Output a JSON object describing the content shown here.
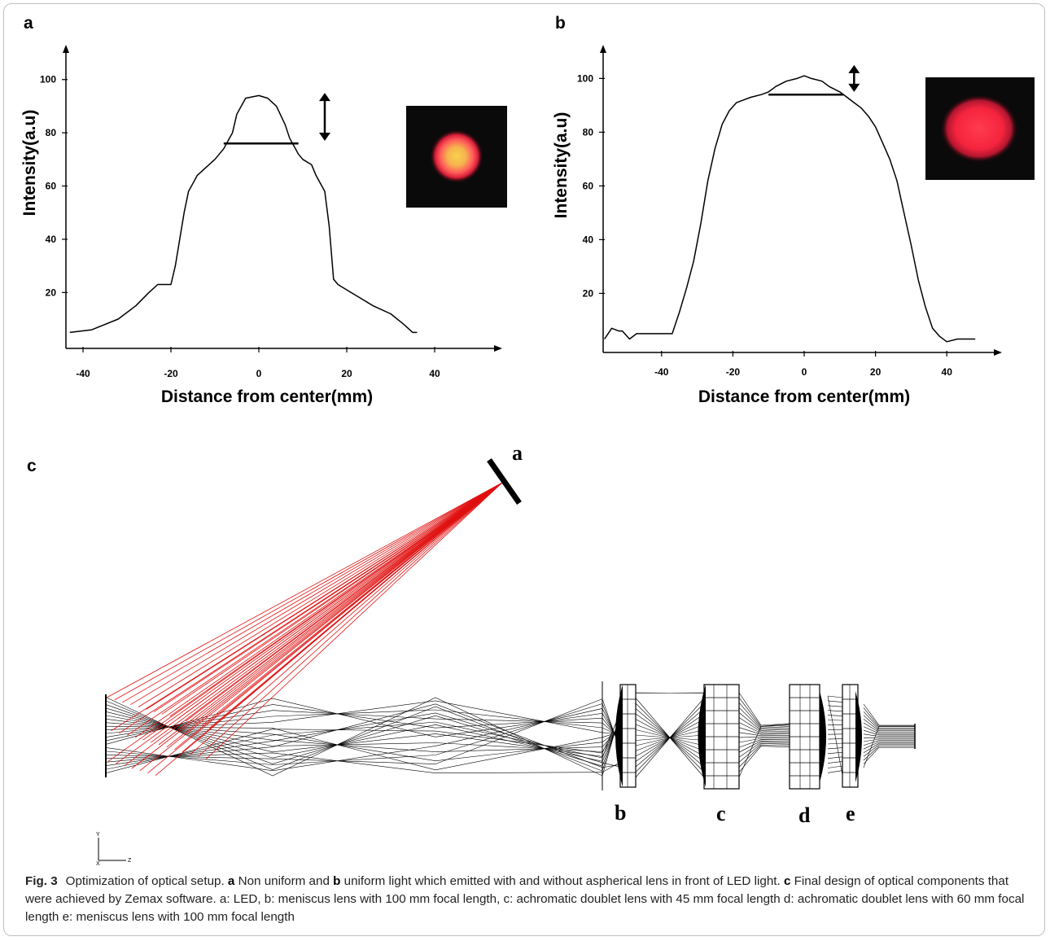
{
  "figure": {
    "panel_labels": {
      "a": "a",
      "b": "b",
      "c": "c"
    },
    "component_labels": [
      "a",
      "b",
      "c",
      "d",
      "e"
    ],
    "axis_glyphs": {
      "y": "Y",
      "z": "Z",
      "x": "X"
    },
    "caption": {
      "fig_label": "Fig. 3",
      "p1": "Optimization of optical setup.",
      "b1": "a",
      "p2": "Non uniform and",
      "b2": "b",
      "p3": "uniform light which emitted with and without aspherical lens in front of LED light.",
      "b3": "c",
      "p4": "Final design of optical components that were achieved by Zemax software. a: LED, b: meniscus lens with 100 mm focal length, c: achromatic doublet lens with 45 mm focal length d: achromatic doublet lens with 60 mm focal length e: meniscus lens with 100 mm focal length"
    }
  },
  "chart_data": [
    {
      "type": "line",
      "panel": "a",
      "xlabel": "Distance from center(mm)",
      "ylabel": "Intensity(a.u)",
      "xlim": [
        -44,
        56
      ],
      "ylim": [
        -1,
        111
      ],
      "x_ticks": [
        -40,
        -20,
        0,
        20,
        40
      ],
      "y_ticks": [
        20,
        40,
        60,
        80,
        100
      ],
      "series": [
        {
          "x": [
            -43,
            -38,
            -32,
            -28,
            -25,
            -23,
            -20,
            -19,
            -17,
            -16,
            -15,
            -14,
            -12,
            -10,
            -8,
            -6,
            -5,
            -3,
            0,
            2,
            4,
            6,
            7,
            8,
            9,
            10,
            12,
            13,
            15,
            16,
            17,
            18,
            20,
            23,
            26,
            30,
            33,
            35,
            36
          ],
          "y": [
            5,
            6,
            10,
            15,
            20,
            23,
            23,
            30,
            50,
            58,
            61,
            64,
            67,
            70,
            74,
            80,
            87,
            93,
            94,
            93,
            90,
            83,
            78,
            75,
            72,
            70,
            68,
            64,
            58,
            45,
            25,
            23,
            21,
            18,
            15,
            12,
            8,
            5,
            5
          ]
        }
      ],
      "annotations": [
        {
          "type": "horizontal-bar",
          "x": [
            -8,
            9
          ],
          "y": 76
        },
        {
          "type": "double-arrow",
          "x": 15,
          "y": [
            77,
            95
          ]
        }
      ],
      "inset": "non-uniform light spot",
      "grid": false
    },
    {
      "type": "line",
      "panel": "b",
      "xlabel": "Distance from center(mm)",
      "ylabel": "Intensity(a.u)",
      "xlim": [
        -56,
        56
      ],
      "ylim": [
        -2,
        113
      ],
      "x_ticks": [
        -40,
        -20,
        0,
        20,
        40
      ],
      "y_ticks": [
        20,
        40,
        60,
        80,
        100
      ],
      "series": [
        {
          "x": [
            -56,
            -54,
            -52,
            -51,
            -49,
            -47,
            -45,
            -43,
            -40,
            -37,
            -35,
            -33,
            -31,
            -29,
            -27,
            -25,
            -23,
            -21,
            -19,
            -17,
            -15,
            -12,
            -10,
            -8,
            -5,
            -2,
            0,
            2,
            5,
            7,
            10,
            12,
            14,
            16,
            18,
            20,
            22,
            24,
            26,
            28,
            30,
            32,
            34,
            36,
            38,
            40,
            43,
            48
          ],
          "y": [
            3,
            7,
            6,
            6,
            3,
            5,
            5,
            5,
            5,
            5,
            13,
            22,
            32,
            46,
            62,
            74,
            83,
            88,
            91,
            92,
            93,
            94,
            95,
            97,
            99,
            100,
            101,
            100,
            99,
            97,
            95,
            93,
            91,
            89,
            86,
            82,
            76,
            70,
            62,
            50,
            38,
            25,
            15,
            7,
            4,
            2,
            3,
            3
          ]
        }
      ],
      "annotations": [
        {
          "type": "horizontal-bar",
          "x": [
            -10,
            11
          ],
          "y": 94
        },
        {
          "type": "double-arrow",
          "x": 14,
          "y": [
            95,
            105
          ]
        }
      ],
      "inset": "uniform light spot",
      "grid": false
    }
  ]
}
